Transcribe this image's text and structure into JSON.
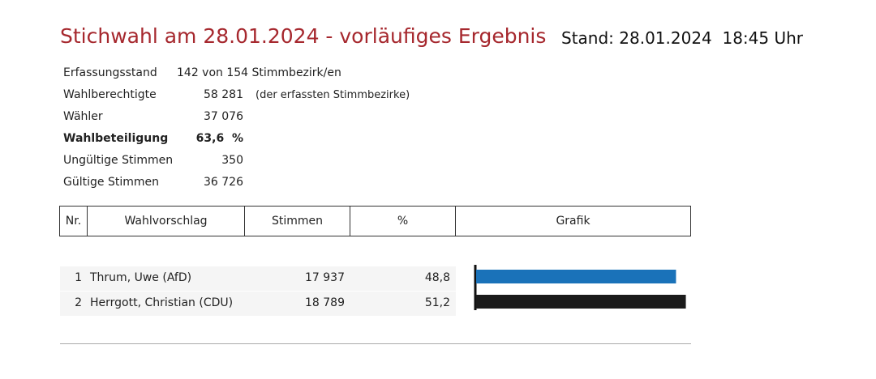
{
  "header": {
    "title": "Stichwahl am 28.01.2024 - vorläufiges Ergebnis",
    "stand": "Stand: 28.01.2024  18:45 Uhr"
  },
  "summary": [
    {
      "label": "Erfassungsstand",
      "value": "142 von 154 Stimmbezirk/en"
    },
    {
      "label": "Wahlberechtigte",
      "value": "58 281",
      "note": "(der erfassten Stimmbezirke)"
    },
    {
      "label": "Wähler",
      "value": "37 076"
    },
    {
      "label": "Wahlbeteiligung",
      "value": "63,6  %"
    },
    {
      "label": "Ungültige Stimmen",
      "value": "350"
    },
    {
      "label": "Gültige Stimmen",
      "value": "36 726"
    }
  ],
  "table": {
    "columns": [
      "Nr.",
      "Wahlvorschlag",
      "Stimmen",
      "%",
      "Grafik"
    ],
    "rows": [
      {
        "nr": 1,
        "name": "Thrum, Uwe (AfD)",
        "votes": "17 937",
        "percent": {
          "value": 48.8,
          "label": "48,8"
        },
        "color": "#1a72b9"
      },
      {
        "nr": 2,
        "name": "Herrgott, Christian (CDU)",
        "votes": "18 789",
        "percent": {
          "value": 51.2,
          "label": "51,2"
        },
        "color": "#1b1b1b"
      }
    ]
  }
}
